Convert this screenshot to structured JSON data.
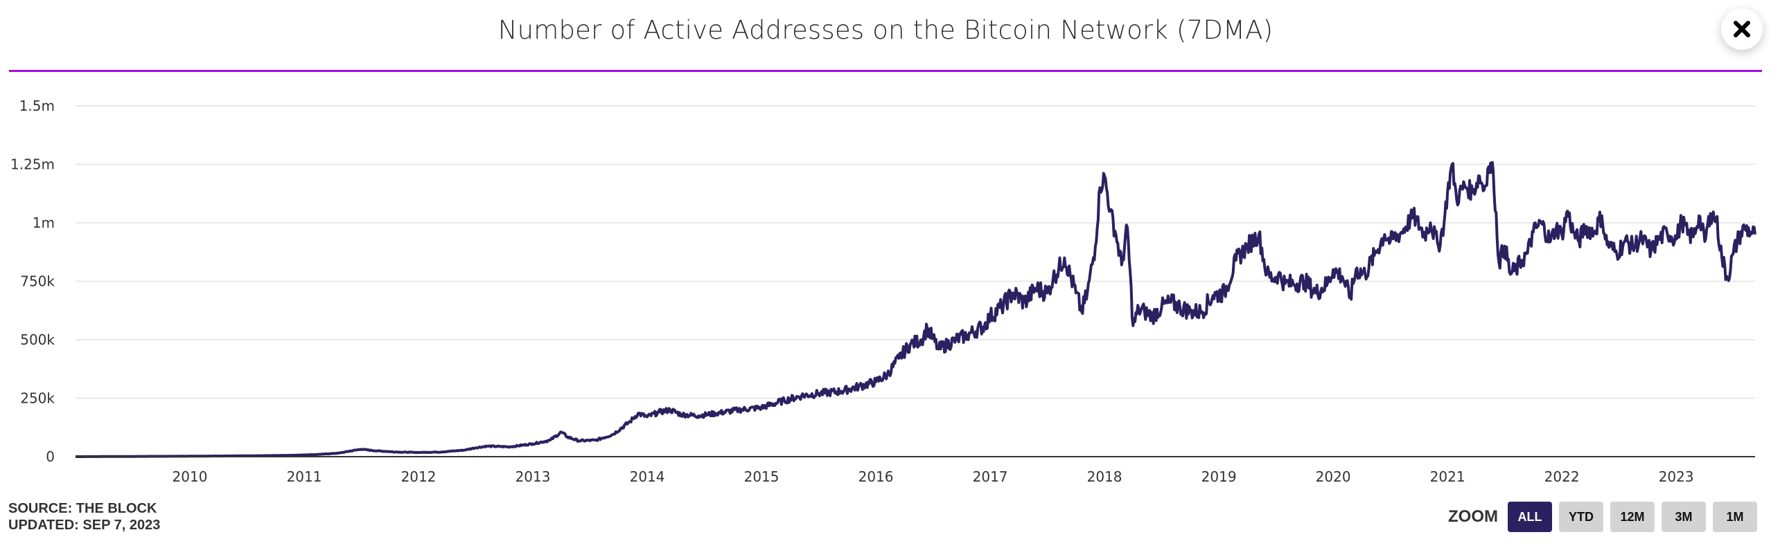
{
  "header": {
    "title": "Number of Active Addresses on the Bitcoin Network (7DMA)",
    "close_icon": "close-icon"
  },
  "footer": {
    "source": "SOURCE: THE BLOCK",
    "updated": "UPDATED: SEP 7, 2023"
  },
  "zoom": {
    "label": "ZOOM",
    "options": [
      "ALL",
      "YTD",
      "12M",
      "3M",
      "1M"
    ],
    "selected": "ALL"
  },
  "colors": {
    "accent_rule": "#a30ae6",
    "line": "#2b2160",
    "active_button": "#2b2160",
    "inactive_button": "#d3d3d3",
    "grid": "#e8e8e8"
  },
  "chart_data": {
    "type": "line",
    "title": "Number of Active Addresses on the Bitcoin Network (7DMA)",
    "xlabel": "",
    "ylabel": "",
    "xlim": [
      2009.0,
      2023.69
    ],
    "ylim": [
      0,
      1500000
    ],
    "y_ticks": [
      0,
      250000,
      500000,
      750000,
      1000000,
      1250000,
      1500000
    ],
    "y_tick_labels": [
      "0",
      "250k",
      "500k",
      "750k",
      "1m",
      "1.25m",
      "1.5m"
    ],
    "x_ticks": [
      2010,
      2011,
      2012,
      2013,
      2014,
      2015,
      2016,
      2017,
      2018,
      2019,
      2020,
      2021,
      2022,
      2023
    ],
    "x_tick_labels": [
      "2010",
      "2011",
      "2012",
      "2013",
      "2014",
      "2015",
      "2016",
      "2017",
      "2018",
      "2019",
      "2020",
      "2021",
      "2022",
      "2023"
    ],
    "grid": true,
    "legend": "none",
    "series": [
      {
        "name": "Active Addresses (7DMA)",
        "x": [
          2009.0,
          2009.5,
          2010.0,
          2010.3,
          2010.6,
          2010.9,
          2011.1,
          2011.3,
          2011.45,
          2011.5,
          2011.6,
          2011.8,
          2012.0,
          2012.2,
          2012.4,
          2012.5,
          2012.6,
          2012.8,
          2013.0,
          2013.15,
          2013.25,
          2013.3,
          2013.4,
          2013.55,
          2013.7,
          2013.85,
          2013.92,
          2014.0,
          2014.1,
          2014.2,
          2014.3,
          2014.45,
          2014.6,
          2014.8,
          2015.0,
          2015.2,
          2015.35,
          2015.5,
          2015.7,
          2015.85,
          2016.0,
          2016.1,
          2016.2,
          2016.3,
          2016.4,
          2016.45,
          2016.55,
          2016.7,
          2016.8,
          2016.95,
          2017.0,
          2017.1,
          2017.2,
          2017.3,
          2017.4,
          2017.5,
          2017.55,
          2017.65,
          2017.75,
          2017.8,
          2017.85,
          2017.92,
          2017.96,
          2018.0,
          2018.05,
          2018.1,
          2018.15,
          2018.2,
          2018.25,
          2018.3,
          2018.35,
          2018.42,
          2018.5,
          2018.58,
          2018.66,
          2018.75,
          2018.85,
          2018.95,
          2019.05,
          2019.15,
          2019.25,
          2019.35,
          2019.42,
          2019.48,
          2019.52,
          2019.58,
          2019.65,
          2019.75,
          2019.85,
          2019.95,
          2020.0,
          2020.08,
          2020.15,
          2020.2,
          2020.28,
          2020.36,
          2020.45,
          2020.5,
          2020.6,
          2020.7,
          2020.8,
          2020.85,
          2020.92,
          2020.97,
          2021.0,
          2021.04,
          2021.08,
          2021.15,
          2021.22,
          2021.28,
          2021.32,
          2021.36,
          2021.4,
          2021.45,
          2021.5,
          2021.55,
          2021.6,
          2021.65,
          2021.7,
          2021.75,
          2021.82,
          2021.9,
          2021.95,
          2022.0,
          2022.05,
          2022.1,
          2022.15,
          2022.2,
          2022.28,
          2022.35,
          2022.38,
          2022.42,
          2022.48,
          2022.55,
          2022.62,
          2022.7,
          2022.78,
          2022.85,
          2022.92,
          2023.0,
          2023.05,
          2023.1,
          2023.15,
          2023.2,
          2023.25,
          2023.3,
          2023.35,
          2023.4,
          2023.45,
          2023.5,
          2023.55,
          2023.6,
          2023.65,
          2023.69
        ],
        "y": [
          0,
          1000,
          2000,
          3000,
          4000,
          6000,
          9000,
          15000,
          28000,
          32000,
          26000,
          20000,
          18000,
          20000,
          28000,
          38000,
          45000,
          42000,
          55000,
          70000,
          105000,
          85000,
          68000,
          70000,
          95000,
          150000,
          185000,
          170000,
          190000,
          200000,
          180000,
          175000,
          185000,
          200000,
          210000,
          240000,
          260000,
          270000,
          280000,
          300000,
          320000,
          350000,
          420000,
          480000,
          500000,
          550000,
          460000,
          500000,
          520000,
          560000,
          600000,
          640000,
          700000,
          660000,
          720000,
          700000,
          760000,
          850000,
          700000,
          620000,
          700000,
          900000,
          1150000,
          1200000,
          1050000,
          950000,
          820000,
          980000,
          560000,
          630000,
          620000,
          600000,
          640000,
          660000,
          640000,
          620000,
          620000,
          690000,
          700000,
          840000,
          900000,
          950000,
          780000,
          760000,
          780000,
          740000,
          740000,
          750000,
          700000,
          740000,
          800000,
          770000,
          680000,
          800000,
          780000,
          860000,
          950000,
          920000,
          960000,
          1030000,
          950000,
          1000000,
          900000,
          1000000,
          1130000,
          1250000,
          1100000,
          1160000,
          1130000,
          1200000,
          1140000,
          1240000,
          1220000,
          830000,
          900000,
          780000,
          800000,
          840000,
          870000,
          960000,
          1000000,
          920000,
          980000,
          950000,
          1050000,
          960000,
          920000,
          980000,
          960000,
          1030000,
          930000,
          900000,
          870000,
          920000,
          900000,
          930000,
          880000,
          930000,
          960000,
          930000,
          1010000,
          950000,
          940000,
          1030000,
          920000,
          1040000,
          1020000,
          850000,
          760000,
          870000,
          940000,
          980000,
          960000,
          950000
        ]
      }
    ]
  }
}
